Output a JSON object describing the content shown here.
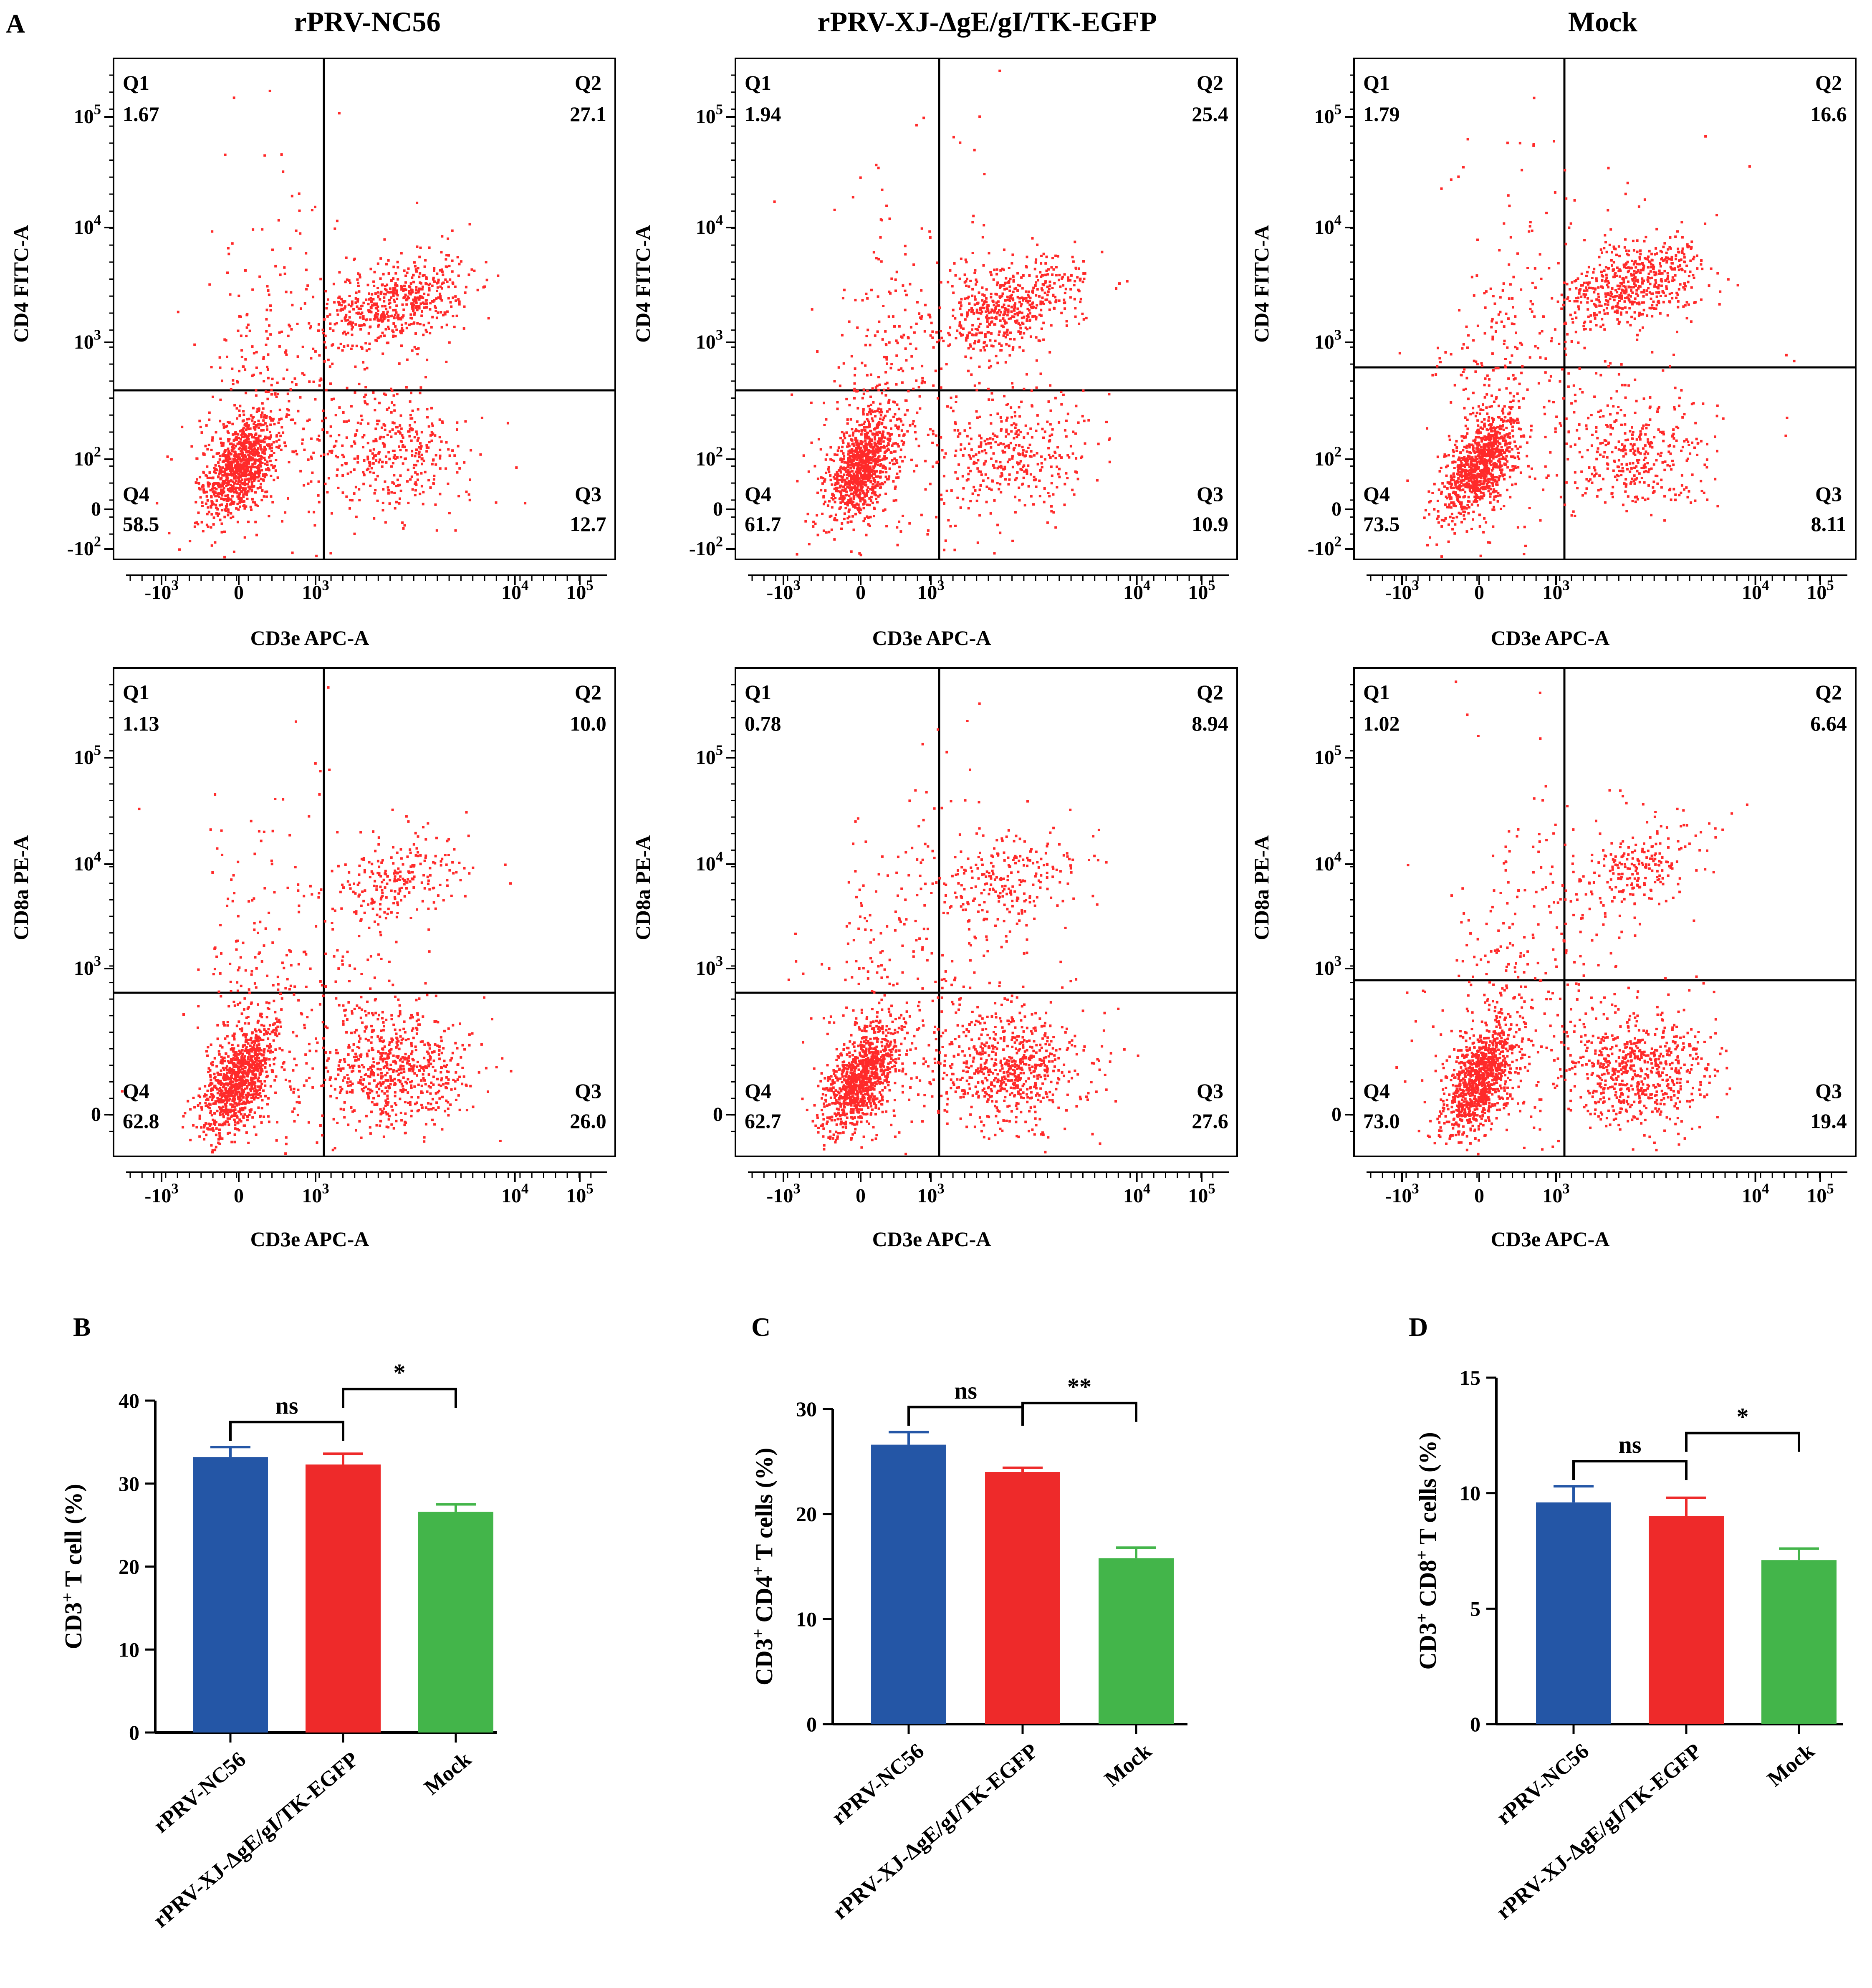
{
  "panel_labels": [
    "A",
    "B",
    "C",
    "D"
  ],
  "colors": {
    "dots": "#ff2a2a",
    "blue": "#2456a6",
    "red": "#ee2a2a",
    "green": "#43b54a",
    "axis": "#000000"
  },
  "flow": {
    "column_titles": [
      "rPRV-NC56",
      "rPRV-XJ-ΔgE/gI/TK-EGFP",
      "Mock"
    ],
    "x_label": "CD3e APC-A",
    "x_ticks": [
      "-10^3",
      "0",
      "10^3",
      "10^4",
      "10^5"
    ],
    "rows": [
      {
        "y_label": "CD4 FITC-A",
        "y_ticks": [
          "10^5",
          "10^4",
          "10^3",
          "10^2",
          "0",
          "-10^2"
        ],
        "plots": [
          {
            "q1": "1.67",
            "q2": "27.1",
            "q3": "12.7",
            "q4": "58.5"
          },
          {
            "q1": "1.94",
            "q2": "25.4",
            "q3": "10.9",
            "q4": "61.7"
          },
          {
            "q1": "1.79",
            "q2": "16.6",
            "q3": "8.11",
            "q4": "73.5"
          }
        ]
      },
      {
        "y_label": "CD8a PE-A",
        "y_ticks": [
          "10^5",
          "10^4",
          "10^3",
          "0"
        ],
        "plots": [
          {
            "q1": "1.13",
            "q2": "10.0",
            "q3": "26.0",
            "q4": "62.8"
          },
          {
            "q1": "0.78",
            "q2": "8.94",
            "q3": "27.6",
            "q4": "62.7"
          },
          {
            "q1": "1.02",
            "q2": "6.64",
            "q3": "19.4",
            "q4": "73.0"
          }
        ]
      }
    ],
    "quadrant_names": [
      "Q1",
      "Q2",
      "Q3",
      "Q4"
    ]
  },
  "chart_data": [
    {
      "type": "bar",
      "panel": "B",
      "ylabel": "CD3+ T cell (%)",
      "ylim": [
        0,
        40
      ],
      "yticks": [
        0,
        10,
        20,
        30,
        40
      ],
      "categories": [
        "rPRV-NC56",
        "rPRV-XJ-ΔgE/gI/TK-EGFP",
        "Mock"
      ],
      "values": [
        33.2,
        32.3,
        26.6
      ],
      "errors": [
        1.2,
        1.3,
        0.9
      ],
      "significance": [
        {
          "from": 0,
          "to": 1,
          "label": "ns"
        },
        {
          "from": 1,
          "to": 2,
          "label": "*"
        }
      ]
    },
    {
      "type": "bar",
      "panel": "C",
      "ylabel": "CD3+ CD4+ T cells (%)",
      "ylim": [
        0,
        30
      ],
      "yticks": [
        0,
        10,
        20,
        30
      ],
      "categories": [
        "rPRV-NC56",
        "rPRV-XJ-ΔgE/gI/TK-EGFP",
        "Mock"
      ],
      "values": [
        26.6,
        24.0,
        15.8
      ],
      "errors": [
        1.2,
        0.4,
        1.0
      ],
      "significance": [
        {
          "from": 0,
          "to": 1,
          "label": "ns"
        },
        {
          "from": 1,
          "to": 2,
          "label": "**"
        }
      ]
    },
    {
      "type": "bar",
      "panel": "D",
      "ylabel": "CD3+ CD8+ T cells (%)",
      "ylim": [
        0,
        15
      ],
      "yticks": [
        0,
        5,
        10,
        15
      ],
      "categories": [
        "rPRV-NC56",
        "rPRV-XJ-ΔgE/gI/TK-EGFP",
        "Mock"
      ],
      "values": [
        9.6,
        9.0,
        7.1
      ],
      "errors": [
        0.7,
        0.8,
        0.5
      ],
      "significance": [
        {
          "from": 0,
          "to": 1,
          "label": "ns"
        },
        {
          "from": 1,
          "to": 2,
          "label": "*"
        }
      ]
    }
  ]
}
